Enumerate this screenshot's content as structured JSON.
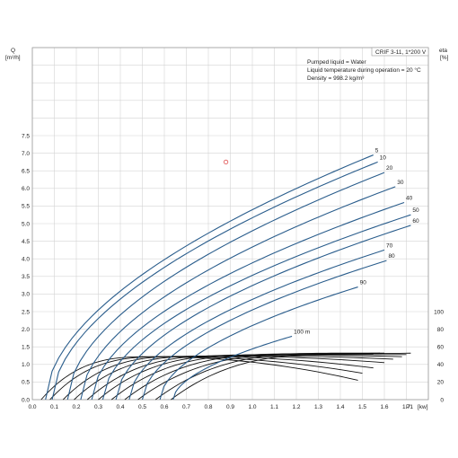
{
  "chart_data": {
    "type": "line",
    "title_box": "CRIF 3-11, 1*200 V",
    "info_lines": [
      "Pumped liquid = Water",
      "Liquid temperature during operation = 20 °C",
      "Density = 998.2 kg/m³"
    ],
    "left_axis": {
      "label": "Q",
      "unit": "[m³/h]",
      "range": [
        0,
        7.5
      ],
      "ticks": [
        "0.0",
        "0.5",
        "1.0",
        "1.5",
        "2.0",
        "2.5",
        "3.0",
        "3.5",
        "4.0",
        "4.5",
        "5.0",
        "5.5",
        "6.0",
        "6.5",
        "7.0",
        "7.5"
      ]
    },
    "right_axis": {
      "label": "eta",
      "unit": "[%]",
      "range": [
        0,
        100
      ],
      "ticks": [
        "0",
        "20",
        "40",
        "60",
        "80",
        "100"
      ]
    },
    "x_axis": {
      "label": "P1",
      "unit": "[kw]",
      "range": [
        0,
        1.8
      ],
      "ticks": [
        "0.0",
        "0.1",
        "0.2",
        "0.3",
        "0.4",
        "0.5",
        "0.6",
        "0.7",
        "0.8",
        "0.9",
        "1.0",
        "1.1",
        "1.2",
        "1.3",
        "1.4",
        "1.5",
        "1.6",
        "1.7"
      ]
    },
    "flow_curves": [
      {
        "name": "5",
        "start": 0.06,
        "end": [
          1.55,
          6.95
        ]
      },
      {
        "name": "10",
        "start": 0.09,
        "end": [
          1.57,
          6.75
        ]
      },
      {
        "name": "20",
        "start": 0.16,
        "end": [
          1.6,
          6.45
        ]
      },
      {
        "name": "30",
        "start": 0.22,
        "end": [
          1.65,
          6.05
        ]
      },
      {
        "name": "40",
        "start": 0.27,
        "end": [
          1.69,
          5.6
        ]
      },
      {
        "name": "50",
        "start": 0.32,
        "end": [
          1.72,
          5.25
        ]
      },
      {
        "name": "60",
        "start": 0.38,
        "end": [
          1.72,
          4.95
        ]
      },
      {
        "name": "70",
        "start": 0.44,
        "end": [
          1.6,
          4.25
        ]
      },
      {
        "name": "80",
        "start": 0.5,
        "end": [
          1.61,
          3.95
        ]
      },
      {
        "name": "90",
        "start": 0.58,
        "end": [
          1.48,
          3.2
        ]
      },
      {
        "name": "100 m",
        "start": 0.64,
        "end": [
          1.18,
          1.8
        ]
      }
    ],
    "efficiency_curves": [
      {
        "start": 0.04,
        "peak": [
          0.55,
          1.22
        ],
        "end": [
          1.48,
          0.55
        ]
      },
      {
        "start": 0.08,
        "peak": [
          0.62,
          1.22
        ],
        "end": [
          1.5,
          0.75
        ]
      },
      {
        "start": 0.14,
        "peak": [
          0.72,
          1.23
        ],
        "end": [
          1.55,
          0.9
        ]
      },
      {
        "start": 0.19,
        "peak": [
          0.82,
          1.24
        ],
        "end": [
          1.6,
          1.05
        ]
      },
      {
        "start": 0.25,
        "peak": [
          0.92,
          1.25
        ],
        "end": [
          1.64,
          1.15
        ]
      },
      {
        "start": 0.3,
        "peak": [
          1.02,
          1.27
        ],
        "end": [
          1.68,
          1.22
        ]
      },
      {
        "start": 0.36,
        "peak": [
          1.12,
          1.28
        ],
        "end": [
          1.7,
          1.28
        ]
      },
      {
        "start": 0.42,
        "peak": [
          1.22,
          1.3
        ],
        "end": [
          1.72,
          1.32
        ]
      },
      {
        "start": 0.48,
        "peak": [
          1.32,
          1.31
        ],
        "end": [
          1.58,
          1.32
        ]
      },
      {
        "start": 0.56,
        "peak": [
          1.4,
          1.32
        ],
        "end": [
          1.6,
          1.32
        ]
      },
      {
        "start": 0.63,
        "peak": [
          1.45,
          1.3
        ],
        "end": [
          1.55,
          1.3
        ]
      }
    ],
    "marker": {
      "x": 0.88,
      "y": 6.75,
      "color": "#e05050"
    },
    "colors": {
      "flow": "#2a5d8c",
      "efficiency": "#111111"
    }
  }
}
